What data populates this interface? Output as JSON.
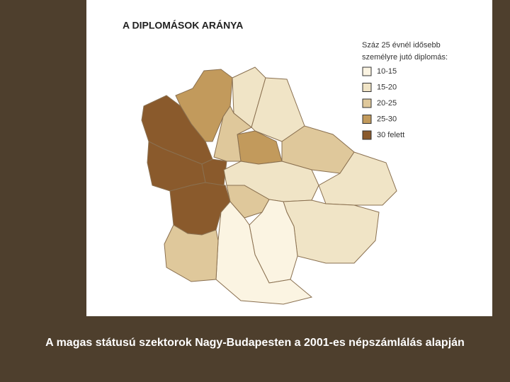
{
  "title": "A DIPLOMÁSOK ARÁNYA",
  "legend": {
    "title_lines": [
      "Száz 25 évnél idősebb",
      "személyre jutó diplomás:"
    ],
    "items": [
      {
        "label": "10-15",
        "color": "#fbf4e2"
      },
      {
        "label": "15-20",
        "color": "#f0e4c6"
      },
      {
        "label": "20-25",
        "color": "#dfc89b"
      },
      {
        "label": "25-30",
        "color": "#c29a5c"
      },
      {
        "label": "30 felett",
        "color": "#8a5a2c"
      }
    ]
  },
  "caption": "A magas státusú szektorok Nagy-Budapesten a 2001-es népszámlálás alapján"
}
